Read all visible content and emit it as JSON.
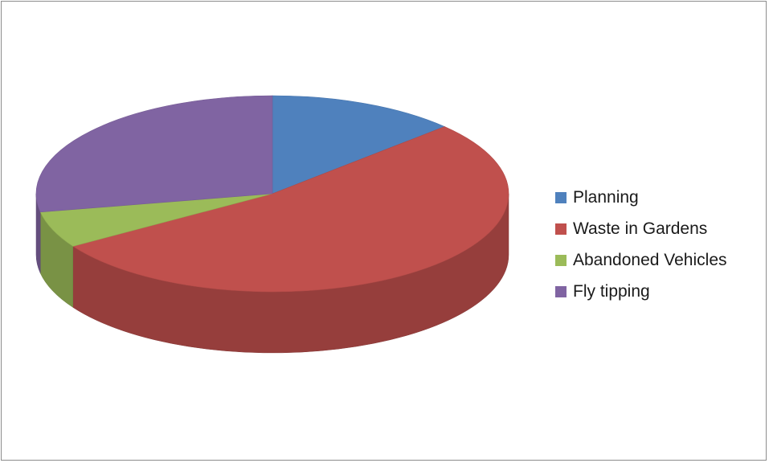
{
  "chart_data": {
    "type": "pie",
    "style": "3d",
    "legend_position": "right",
    "categories": [
      "Planning",
      "Waste in Gardens",
      "Abandoned Vehicles",
      "Fly tipping"
    ],
    "values": [
      13,
      53,
      6,
      28
    ],
    "colors": [
      "#4f81bd",
      "#c0504d",
      "#9bbb59",
      "#8064a2"
    ]
  }
}
